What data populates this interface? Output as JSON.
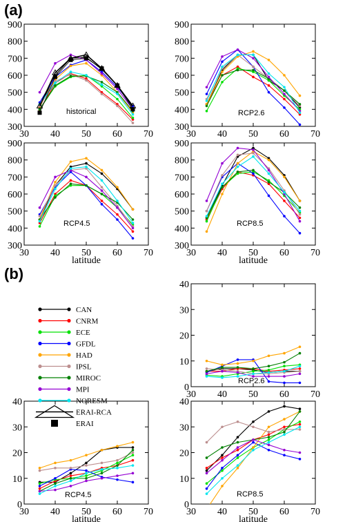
{
  "figure": {
    "section_a_label": "(a)",
    "section_b_label": "(b)"
  },
  "colors": {
    "CAN": "#000000",
    "CNRM": "#ff0000",
    "ECE": "#00e000",
    "GFDL": "#0000ff",
    "HAD": "#ffa500",
    "IPSL": "#bc8f8f",
    "MIROC": "#008000",
    "MPI": "#9400d3",
    "NORESM": "#00e5ee",
    "ERAI-RCA": "#000000",
    "ERAI": "#000000"
  },
  "legend": [
    {
      "name": "CAN",
      "key": "CAN"
    },
    {
      "name": "CNRM",
      "key": "CNRM"
    },
    {
      "name": "ECE",
      "key": "ECE"
    },
    {
      "name": "GFDL",
      "key": "GFDL"
    },
    {
      "name": "HAD",
      "key": "HAD"
    },
    {
      "name": "IPSL",
      "key": "IPSL"
    },
    {
      "name": "MIROC",
      "key": "MIROC"
    },
    {
      "name": "MPI",
      "key": "MPI"
    },
    {
      "name": "NORESM",
      "key": "NORESM"
    },
    {
      "name": "ERAI-RCA",
      "key": "ERAI-RCA"
    },
    {
      "name": "ERAI",
      "key": "ERAI"
    }
  ],
  "chart_data": [
    {
      "type": "line",
      "id": "a-historical",
      "panel_label": "historical",
      "xlabel": "",
      "xlim": [
        30,
        70
      ],
      "ylim": [
        300,
        900
      ],
      "xticks": [
        30,
        40,
        50,
        60,
        70
      ],
      "yticks": [
        300,
        400,
        500,
        600,
        700,
        800,
        900
      ],
      "x": [
        35,
        40,
        45,
        50,
        55,
        60,
        65
      ],
      "series": [
        {
          "name": "CAN",
          "values": [
            410,
            600,
            700,
            705,
            635,
            540,
            410
          ]
        },
        {
          "name": "CNRM",
          "values": [
            395,
            555,
            610,
            580,
            500,
            430,
            340
          ]
        },
        {
          "name": "ECE",
          "values": [
            400,
            535,
            590,
            600,
            535,
            460,
            350
          ]
        },
        {
          "name": "GFDL",
          "values": [
            440,
            590,
            660,
            690,
            620,
            530,
            420
          ]
        },
        {
          "name": "HAD",
          "values": [
            415,
            575,
            655,
            670,
            600,
            500,
            380
          ]
        },
        {
          "name": "IPSL",
          "values": [
            420,
            565,
            605,
            570,
            490,
            420,
            320
          ]
        },
        {
          "name": "MIROC",
          "values": [
            400,
            540,
            595,
            595,
            560,
            500,
            390
          ]
        },
        {
          "name": "MPI",
          "values": [
            500,
            670,
            720,
            690,
            610,
            520,
            400
          ]
        },
        {
          "name": "NORESM",
          "values": [
            430,
            555,
            620,
            600,
            545,
            490,
            370
          ]
        },
        {
          "name": "ERAI-RCA",
          "values": [
            420,
            615,
            700,
            720,
            640,
            540,
            420
          ]
        },
        {
          "name": "ERAI",
          "values": [
            380,
            590,
            690,
            700,
            640,
            540,
            400
          ]
        }
      ]
    },
    {
      "type": "line",
      "id": "a-rcp26",
      "panel_label": "RCP2.6",
      "xlabel": "",
      "xlim": [
        30,
        70
      ],
      "ylim": [
        300,
        900
      ],
      "xticks": [
        30,
        40,
        50,
        60,
        70
      ],
      "yticks": [
        300,
        400,
        500,
        600,
        700,
        800,
        900
      ],
      "x": [
        35,
        40,
        45,
        50,
        55,
        60,
        65
      ],
      "series": [
        {
          "name": "CAN",
          "values": [
            430,
            630,
            720,
            720,
            570,
            510,
            410
          ]
        },
        {
          "name": "CNRM",
          "values": [
            430,
            600,
            650,
            590,
            540,
            460,
            370
          ]
        },
        {
          "name": "ECE",
          "values": [
            390,
            560,
            640,
            620,
            570,
            480,
            400
          ]
        },
        {
          "name": "GFDL",
          "values": [
            490,
            680,
            750,
            650,
            500,
            410,
            310
          ]
        },
        {
          "name": "HAD",
          "values": [
            430,
            620,
            710,
            740,
            690,
            600,
            480
          ]
        },
        {
          "name": "IPSL",
          "values": [
            460,
            640,
            720,
            650,
            580,
            510,
            420
          ]
        },
        {
          "name": "MIROC",
          "values": [
            420,
            600,
            630,
            630,
            580,
            510,
            430
          ]
        },
        {
          "name": "MPI",
          "values": [
            530,
            710,
            750,
            700,
            590,
            490,
            390
          ]
        },
        {
          "name": "NORESM",
          "values": [
            450,
            650,
            720,
            720,
            610,
            530,
            380
          ]
        }
      ]
    },
    {
      "type": "line",
      "id": "a-rcp45",
      "panel_label": "RCP4.5",
      "xlabel": "latitude",
      "xlim": [
        30,
        70
      ],
      "ylim": [
        300,
        900
      ],
      "xticks": [
        30,
        40,
        50,
        60,
        70
      ],
      "yticks": [
        300,
        400,
        500,
        600,
        700,
        800,
        900
      ],
      "x": [
        35,
        40,
        45,
        50,
        55,
        60,
        65
      ],
      "series": [
        {
          "name": "CAN",
          "values": [
            450,
            650,
            760,
            780,
            720,
            630,
            510
          ]
        },
        {
          "name": "CNRM",
          "values": [
            430,
            600,
            680,
            650,
            560,
            480,
            380
          ]
        },
        {
          "name": "ECE",
          "values": [
            410,
            590,
            650,
            650,
            600,
            520,
            420
          ]
        },
        {
          "name": "GFDL",
          "values": [
            480,
            640,
            730,
            650,
            540,
            450,
            340
          ]
        },
        {
          "name": "HAD",
          "values": [
            450,
            670,
            790,
            810,
            740,
            640,
            510
          ]
        },
        {
          "name": "IPSL",
          "values": [
            470,
            650,
            740,
            750,
            640,
            530,
            410
          ]
        },
        {
          "name": "MIROC",
          "values": [
            450,
            580,
            660,
            650,
            600,
            550,
            450
          ]
        },
        {
          "name": "MPI",
          "values": [
            520,
            700,
            740,
            700,
            620,
            520,
            400
          ]
        },
        {
          "name": "NORESM",
          "values": [
            440,
            630,
            750,
            760,
            680,
            560,
            430
          ]
        }
      ]
    },
    {
      "type": "line",
      "id": "a-rcp85",
      "panel_label": "RCP8.5",
      "xlabel": "latitude",
      "xlim": [
        30,
        70
      ],
      "ylim": [
        300,
        900
      ],
      "xticks": [
        30,
        40,
        50,
        60,
        70
      ],
      "yticks": [
        300,
        400,
        500,
        600,
        700,
        800,
        900
      ],
      "x": [
        35,
        40,
        45,
        50,
        55,
        60,
        65
      ],
      "series": [
        {
          "name": "CAN",
          "values": [
            460,
            650,
            820,
            870,
            810,
            710,
            560
          ]
        },
        {
          "name": "CNRM",
          "values": [
            450,
            630,
            730,
            710,
            660,
            560,
            460
          ]
        },
        {
          "name": "ECE",
          "values": [
            440,
            640,
            720,
            730,
            680,
            590,
            490
          ]
        },
        {
          "name": "GFDL",
          "values": [
            500,
            700,
            780,
            720,
            590,
            470,
            370
          ]
        },
        {
          "name": "HAD",
          "values": [
            380,
            600,
            780,
            850,
            800,
            700,
            560
          ]
        },
        {
          "name": "IPSL",
          "values": [
            500,
            710,
            830,
            840,
            750,
            620,
            480
          ]
        },
        {
          "name": "MIROC",
          "values": [
            460,
            640,
            730,
            740,
            670,
            610,
            520
          ]
        },
        {
          "name": "MPI",
          "values": [
            560,
            780,
            870,
            860,
            740,
            600,
            440
          ]
        },
        {
          "name": "NORESM",
          "values": [
            470,
            660,
            760,
            820,
            720,
            610,
            500
          ]
        }
      ]
    },
    {
      "type": "line",
      "id": "b-rcp26",
      "panel_label": "RCP2.6",
      "xlabel": "",
      "xlim": [
        30,
        70
      ],
      "ylim": [
        0,
        40
      ],
      "xticks": [
        30,
        40,
        50,
        60,
        70
      ],
      "yticks": [
        0,
        10,
        20,
        30,
        40
      ],
      "x": [
        35,
        40,
        45,
        50,
        55,
        60,
        65
      ],
      "series": [
        {
          "name": "CAN",
          "values": [
            6,
            7,
            7,
            6.5,
            5.5,
            6,
            6
          ]
        },
        {
          "name": "CNRM",
          "values": [
            6,
            6,
            7,
            7,
            6,
            6.5,
            7
          ]
        },
        {
          "name": "ECE",
          "values": [
            4.5,
            4,
            5,
            6,
            6.5,
            8,
            8.5
          ]
        },
        {
          "name": "GFDL",
          "values": [
            5.5,
            8,
            10.5,
            10.5,
            2,
            1.5,
            1.5
          ]
        },
        {
          "name": "HAD",
          "values": [
            10,
            8.5,
            9,
            10,
            12,
            13,
            15.5
          ]
        },
        {
          "name": "IPSL",
          "values": [
            7,
            6.5,
            6,
            5,
            5,
            5.5,
            6
          ]
        },
        {
          "name": "MIROC",
          "values": [
            6,
            7.5,
            7.5,
            7,
            8,
            9.5,
            13
          ]
        },
        {
          "name": "MPI",
          "values": [
            5,
            6,
            5.5,
            4,
            4,
            4,
            5
          ]
        },
        {
          "name": "NORESM",
          "values": [
            4,
            3.5,
            4,
            5,
            5.5,
            6,
            8
          ]
        }
      ]
    },
    {
      "type": "line",
      "id": "b-rcp45",
      "panel_label": "RCP4.5",
      "xlabel": "latitude",
      "xlim": [
        30,
        70
      ],
      "ylim": [
        0,
        40
      ],
      "xticks": [
        30,
        40,
        50,
        60,
        70
      ],
      "yticks": [
        0,
        10,
        20,
        30,
        40
      ],
      "x": [
        35,
        40,
        45,
        50,
        55,
        60,
        65
      ],
      "series": [
        {
          "name": "CAN",
          "values": [
            8.5,
            8.5,
            12,
            16,
            21,
            22,
            22
          ]
        },
        {
          "name": "CNRM",
          "values": [
            6,
            9,
            11,
            12,
            14,
            15,
            17
          ]
        },
        {
          "name": "ECE",
          "values": [
            8,
            9.5,
            10,
            11,
            13,
            16,
            19
          ]
        },
        {
          "name": "GFDL",
          "values": [
            7,
            10,
            13.5,
            13,
            10.5,
            9.5,
            8.5
          ]
        },
        {
          "name": "HAD",
          "values": [
            14,
            16,
            17,
            19,
            21,
            22.5,
            24
          ]
        },
        {
          "name": "IPSL",
          "values": [
            13,
            14,
            14,
            15,
            16,
            17,
            20
          ]
        },
        {
          "name": "MIROC",
          "values": [
            5,
            8,
            10,
            10,
            12,
            15,
            21
          ]
        },
        {
          "name": "MPI",
          "values": [
            5,
            5.5,
            7,
            9,
            10,
            11,
            12
          ]
        },
        {
          "name": "NORESM",
          "values": [
            4,
            7,
            9,
            12,
            13.5,
            14,
            15
          ]
        }
      ]
    },
    {
      "type": "line",
      "id": "b-rcp85",
      "panel_label": "RCP8.5",
      "xlabel": "latitude",
      "xlim": [
        30,
        70
      ],
      "ylim": [
        0,
        40
      ],
      "xticks": [
        30,
        40,
        50,
        60,
        70
      ],
      "yticks": [
        0,
        10,
        20,
        30,
        40
      ],
      "x": [
        35,
        40,
        45,
        50,
        55,
        60,
        65
      ],
      "series": [
        {
          "name": "CAN",
          "values": [
            13,
            19,
            26,
            32,
            36,
            38,
            37
          ]
        },
        {
          "name": "CNRM",
          "values": [
            14,
            18,
            21,
            25,
            27,
            30,
            31
          ]
        },
        {
          "name": "ECE",
          "values": [
            8,
            13,
            18,
            22,
            25,
            29,
            32
          ]
        },
        {
          "name": "GFDL",
          "values": [
            6,
            14,
            19,
            24,
            21,
            19,
            17.5
          ]
        },
        {
          "name": "HAD",
          "values": [
            -2,
            7,
            14,
            22,
            30,
            33,
            36
          ]
        },
        {
          "name": "IPSL",
          "values": [
            24,
            30,
            32,
            30,
            28,
            29,
            29
          ]
        },
        {
          "name": "MIROC",
          "values": [
            18,
            22,
            24,
            25,
            26,
            28,
            36
          ]
        },
        {
          "name": "MPI",
          "values": [
            12,
            17,
            22,
            25,
            23,
            21,
            20
          ]
        },
        {
          "name": "NORESM",
          "values": [
            4,
            10,
            15,
            21,
            24,
            27,
            30
          ]
        }
      ]
    }
  ]
}
